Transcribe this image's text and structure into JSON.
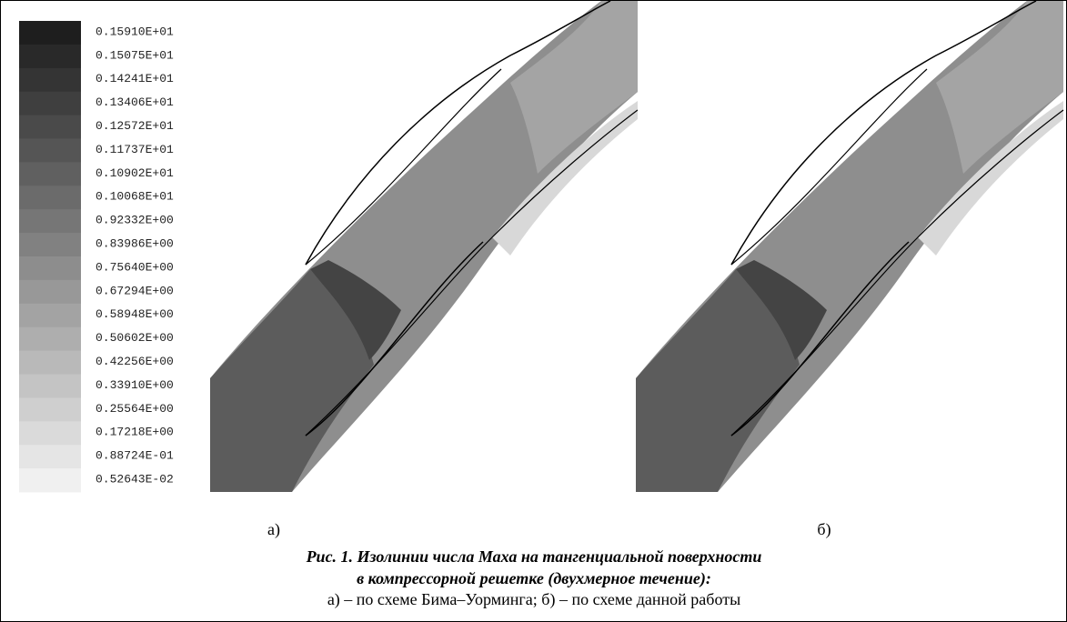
{
  "legend": {
    "labels": [
      "0.15910E+01",
      "0.15075E+01",
      "0.14241E+01",
      "0.13406E+01",
      "0.12572E+01",
      "0.11737E+01",
      "0.10902E+01",
      "0.10068E+01",
      "0.92332E+00",
      "0.83986E+00",
      "0.75640E+00",
      "0.67294E+00",
      "0.58948E+00",
      "0.50602E+00",
      "0.42256E+00",
      "0.33910E+00",
      "0.25564E+00",
      "0.17218E+00",
      "0.88724E-01",
      "0.52643E-02"
    ]
  },
  "panels": [
    {
      "label": "а)"
    },
    {
      "label": "б)"
    }
  ],
  "caption": {
    "line1": "Рис. 1. Изолинии числа Маха на тангенциальной поверхности",
    "line2": "в компрессорной решетке (двухмерное течение):",
    "line3": "а) – по схеме Бима–Уорминга; б) – по схеме данной работы"
  }
}
